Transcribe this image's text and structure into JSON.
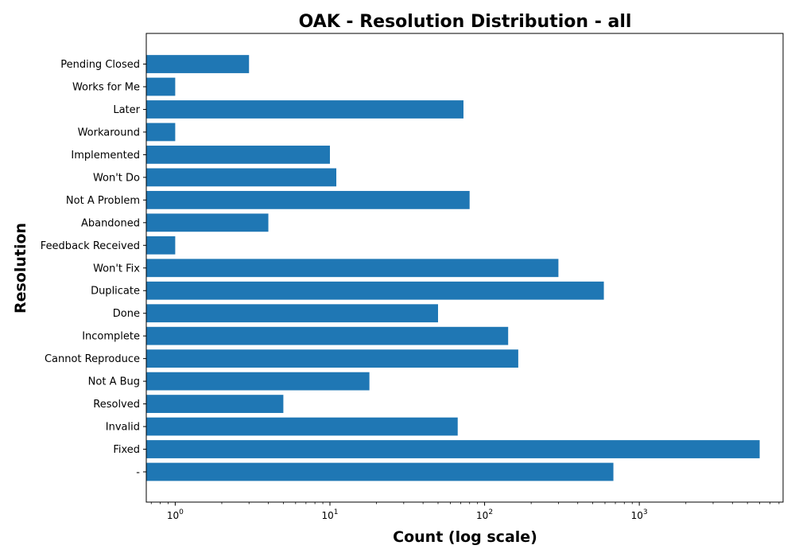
{
  "chart_data": {
    "type": "bar",
    "orientation": "horizontal",
    "title": "OAK - Resolution Distribution - all",
    "xlabel": "Count (log scale)",
    "ylabel": "Resolution",
    "x_scale": "log",
    "xlim": [
      0.65,
      8500
    ],
    "x_ticks": [
      {
        "value": 1,
        "base": "10",
        "exp": "0"
      },
      {
        "value": 10,
        "base": "10",
        "exp": "1"
      },
      {
        "value": 100,
        "base": "10",
        "exp": "2"
      },
      {
        "value": 1000,
        "base": "10",
        "exp": "3"
      }
    ],
    "grid": false,
    "bar_color": "#1f77b4",
    "categories": [
      "-",
      "Fixed",
      "Invalid",
      "Resolved",
      "Not A Bug",
      "Cannot Reproduce",
      "Incomplete",
      "Done",
      "Duplicate",
      "Won't Fix",
      "Feedback Received",
      "Abandoned",
      "Not A Problem",
      "Won't Do",
      "Implemented",
      "Workaround",
      "Later",
      "Works for Me",
      "Pending Closed"
    ],
    "values": [
      680,
      6000,
      67,
      5,
      18,
      165,
      142,
      50,
      590,
      300,
      1,
      4,
      80,
      11,
      10,
      1,
      73,
      1,
      3
    ]
  }
}
